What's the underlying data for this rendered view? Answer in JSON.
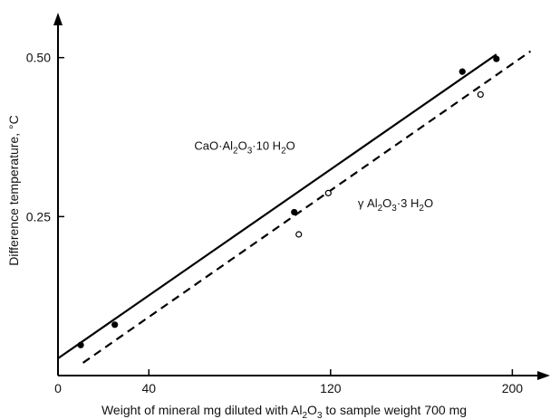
{
  "chart_data": {
    "type": "scatter",
    "title": "",
    "xlabel_parts": [
      {
        "t": "Weight of mineral mg diluted with Al",
        "sub": false
      },
      {
        "t": "2",
        "sub": true
      },
      {
        "t": "O",
        "sub": false
      },
      {
        "t": "3",
        "sub": true
      },
      {
        "t": " to sample weight  700 mg",
        "sub": false
      }
    ],
    "ylabel": "Difference temperature, °C",
    "xlim": [
      0,
      215
    ],
    "ylim": [
      0,
      0.565
    ],
    "x_ticks": [
      0,
      40,
      120,
      200
    ],
    "x_tick_labels": [
      "0",
      "40",
      "120",
      "200"
    ],
    "y_ticks": [
      0.25,
      0.5
    ],
    "y_tick_labels": [
      "0.25",
      "0.50"
    ],
    "grid": false,
    "legend": "none",
    "series": [
      {
        "label_parts": [
          {
            "t": "CaO·Al",
            "sub": false
          },
          {
            "t": "2",
            "sub": true
          },
          {
            "t": "O",
            "sub": false
          },
          {
            "t": "3",
            "sub": true
          },
          {
            "t": "·10 H",
            "sub": false
          },
          {
            "t": "2",
            "sub": true
          },
          {
            "t": "O",
            "sub": false
          }
        ],
        "marker": "filled-circle",
        "line_style": "solid",
        "points": [
          {
            "x": 10,
            "y": 0.048
          },
          {
            "x": 25,
            "y": 0.08
          },
          {
            "x": 104,
            "y": 0.257
          },
          {
            "x": 178,
            "y": 0.478
          },
          {
            "x": 193,
            "y": 0.498
          }
        ],
        "fit_line": [
          {
            "x": 0,
            "y": 0.027
          },
          {
            "x": 193,
            "y": 0.505
          }
        ]
      },
      {
        "label_parts": [
          {
            "t": "γ Al",
            "sub": false
          },
          {
            "t": "2",
            "sub": true
          },
          {
            "t": "O",
            "sub": false
          },
          {
            "t": "3",
            "sub": true
          },
          {
            "t": "·3 H",
            "sub": false
          },
          {
            "t": "2",
            "sub": true
          },
          {
            "t": "O",
            "sub": false
          }
        ],
        "marker": "open-circle",
        "line_style": "dashed",
        "points": [
          {
            "x": 106,
            "y": 0.222
          },
          {
            "x": 119,
            "y": 0.287
          },
          {
            "x": 186,
            "y": 0.442
          }
        ],
        "fit_line": [
          {
            "x": 11,
            "y": 0.02
          },
          {
            "x": 208,
            "y": 0.51
          }
        ]
      }
    ]
  }
}
